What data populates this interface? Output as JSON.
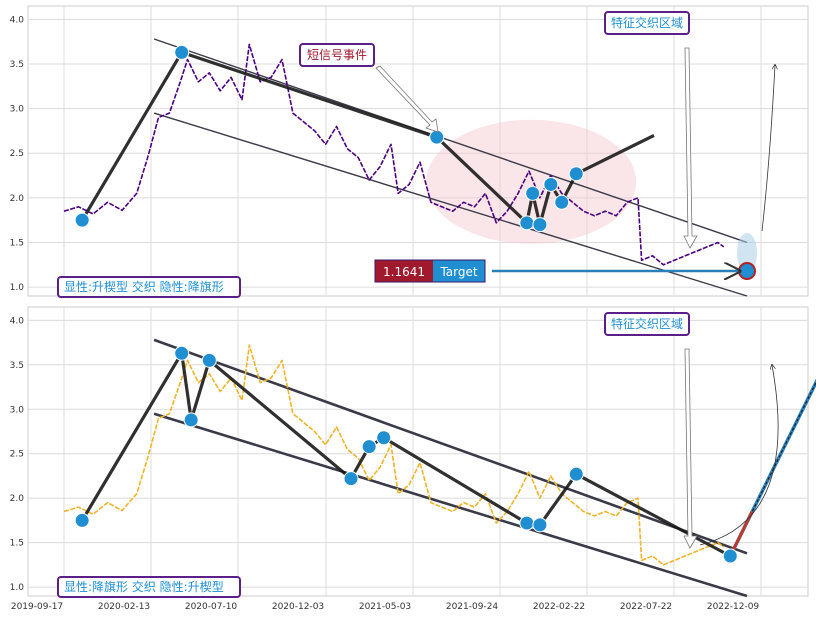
{
  "chart_data": [
    {
      "type": "line",
      "x_ticks": [
        "2019-09-17",
        "2020-02-13",
        "2020-07-10",
        "2020-12-03",
        "2021-05-03",
        "2021-09-24",
        "2022-02-22",
        "2022-07-22",
        "2022-12-09"
      ],
      "y_ticks": [
        "1.0",
        "1.5",
        "2.0",
        "2.5",
        "3.0",
        "3.5",
        "4.0"
      ],
      "ylim": [
        0.9,
        4.15
      ],
      "grid": true,
      "price_color": "#4b0082",
      "price_points": [
        [
          0,
          1.85
        ],
        [
          20,
          1.9
        ],
        [
          40,
          1.82
        ],
        [
          60,
          1.95
        ],
        [
          80,
          1.86
        ],
        [
          100,
          2.05
        ],
        [
          115,
          2.45
        ],
        [
          130,
          2.9
        ],
        [
          145,
          2.95
        ],
        [
          160,
          3.3
        ],
        [
          170,
          3.55
        ],
        [
          185,
          3.3
        ],
        [
          200,
          3.4
        ],
        [
          215,
          3.2
        ],
        [
          230,
          3.35
        ],
        [
          245,
          3.1
        ],
        [
          255,
          3.72
        ],
        [
          270,
          3.3
        ],
        [
          285,
          3.35
        ],
        [
          300,
          3.55
        ],
        [
          315,
          2.95
        ],
        [
          330,
          2.85
        ],
        [
          345,
          2.75
        ],
        [
          360,
          2.6
        ],
        [
          375,
          2.8
        ],
        [
          390,
          2.55
        ],
        [
          405,
          2.45
        ],
        [
          420,
          2.2
        ],
        [
          435,
          2.35
        ],
        [
          450,
          2.6
        ],
        [
          460,
          2.05
        ],
        [
          475,
          2.15
        ],
        [
          490,
          2.4
        ],
        [
          505,
          1.95
        ],
        [
          520,
          1.9
        ],
        [
          535,
          1.85
        ],
        [
          550,
          1.95
        ],
        [
          565,
          1.9
        ],
        [
          580,
          2.05
        ],
        [
          595,
          1.72
        ],
        [
          610,
          1.85
        ],
        [
          625,
          2.05
        ],
        [
          640,
          2.3
        ],
        [
          655,
          2.0
        ],
        [
          670,
          2.25
        ],
        [
          685,
          2.05
        ],
        [
          700,
          1.95
        ],
        [
          715,
          1.85
        ],
        [
          730,
          1.8
        ],
        [
          745,
          1.85
        ],
        [
          760,
          1.8
        ],
        [
          775,
          1.95
        ],
        [
          790,
          2.0
        ],
        [
          795,
          1.3
        ],
        [
          810,
          1.35
        ],
        [
          825,
          1.25
        ],
        [
          840,
          1.3
        ],
        [
          855,
          1.35
        ],
        [
          870,
          1.4
        ],
        [
          885,
          1.45
        ],
        [
          900,
          1.5
        ],
        [
          908,
          1.45
        ]
      ],
      "zigzag": [
        [
          25,
          1.75
        ],
        [
          162,
          3.63
        ],
        [
          513,
          2.68
        ],
        [
          637,
          1.72
        ],
        [
          645,
          2.05
        ],
        [
          655,
          1.7
        ],
        [
          670,
          2.15
        ],
        [
          685,
          1.95
        ],
        [
          705,
          2.27
        ],
        [
          812,
          2.7
        ]
      ],
      "channel_upper": [
        [
          124,
          3.78
        ],
        [
          940,
          1.5
        ]
      ],
      "channel_lower": [
        [
          124,
          2.95
        ],
        [
          940,
          0.9
        ]
      ],
      "target_point": [
        940,
        1.18
      ],
      "target_value": "1.1641",
      "target_label": "Target",
      "ellipse_center": [
        643,
        2.18
      ],
      "event_label": "短信号事件",
      "zone_label": "特征交织区域",
      "bottom_label": "显性:升楔型 交织 隐性:降旗形"
    },
    {
      "type": "line",
      "x_ticks": [
        "2019-09-17",
        "2020-02-13",
        "2020-07-10",
        "2020-12-03",
        "2021-05-03",
        "2021-09-24",
        "2022-02-22",
        "2022-07-22",
        "2022-12-09"
      ],
      "y_ticks": [
        "1.0",
        "1.5",
        "2.0",
        "2.5",
        "3.0",
        "3.5",
        "4.0"
      ],
      "ylim": [
        0.9,
        4.15
      ],
      "grid": true,
      "price_color": "#f0b429",
      "price_points": [
        [
          0,
          1.85
        ],
        [
          20,
          1.9
        ],
        [
          40,
          1.82
        ],
        [
          60,
          1.95
        ],
        [
          80,
          1.86
        ],
        [
          100,
          2.05
        ],
        [
          115,
          2.45
        ],
        [
          130,
          2.9
        ],
        [
          145,
          2.95
        ],
        [
          160,
          3.3
        ],
        [
          170,
          3.55
        ],
        [
          185,
          3.3
        ],
        [
          200,
          3.4
        ],
        [
          215,
          3.2
        ],
        [
          230,
          3.35
        ],
        [
          245,
          3.1
        ],
        [
          255,
          3.72
        ],
        [
          270,
          3.3
        ],
        [
          285,
          3.35
        ],
        [
          300,
          3.55
        ],
        [
          315,
          2.95
        ],
        [
          330,
          2.85
        ],
        [
          345,
          2.75
        ],
        [
          360,
          2.6
        ],
        [
          375,
          2.8
        ],
        [
          390,
          2.55
        ],
        [
          405,
          2.45
        ],
        [
          420,
          2.2
        ],
        [
          435,
          2.35
        ],
        [
          450,
          2.6
        ],
        [
          460,
          2.05
        ],
        [
          475,
          2.15
        ],
        [
          490,
          2.4
        ],
        [
          505,
          1.95
        ],
        [
          520,
          1.9
        ],
        [
          535,
          1.85
        ],
        [
          550,
          1.95
        ],
        [
          565,
          1.9
        ],
        [
          580,
          2.05
        ],
        [
          595,
          1.72
        ],
        [
          610,
          1.85
        ],
        [
          625,
          2.05
        ],
        [
          640,
          2.3
        ],
        [
          655,
          2.0
        ],
        [
          670,
          2.25
        ],
        [
          685,
          2.05
        ],
        [
          700,
          1.95
        ],
        [
          715,
          1.85
        ],
        [
          730,
          1.8
        ],
        [
          745,
          1.85
        ],
        [
          760,
          1.8
        ],
        [
          775,
          1.95
        ],
        [
          790,
          2.0
        ],
        [
          795,
          1.3
        ],
        [
          810,
          1.35
        ],
        [
          825,
          1.25
        ],
        [
          840,
          1.3
        ],
        [
          855,
          1.35
        ],
        [
          870,
          1.4
        ],
        [
          885,
          1.45
        ],
        [
          900,
          1.5
        ],
        [
          908,
          1.45
        ]
      ],
      "zigzag": [
        [
          25,
          1.75
        ],
        [
          162,
          3.63
        ],
        [
          175,
          2.88
        ],
        [
          200,
          3.55
        ],
        [
          395,
          2.22
        ],
        [
          420,
          2.58
        ],
        [
          440,
          2.68
        ],
        [
          637,
          1.72
        ],
        [
          655,
          1.7
        ],
        [
          705,
          2.27
        ],
        [
          917,
          1.35
        ]
      ],
      "channel_upper": [
        [
          124,
          3.78
        ],
        [
          940,
          1.38
        ]
      ],
      "channel_lower": [
        [
          124,
          2.95
        ],
        [
          940,
          0.9
        ]
      ],
      "projection": [
        [
          917,
          1.35
        ],
        [
          1047,
          3.5
        ]
      ],
      "zone_label": "特征交织区域",
      "bottom_label": "显性:降旗形 交织 隐性:升楔型"
    }
  ]
}
